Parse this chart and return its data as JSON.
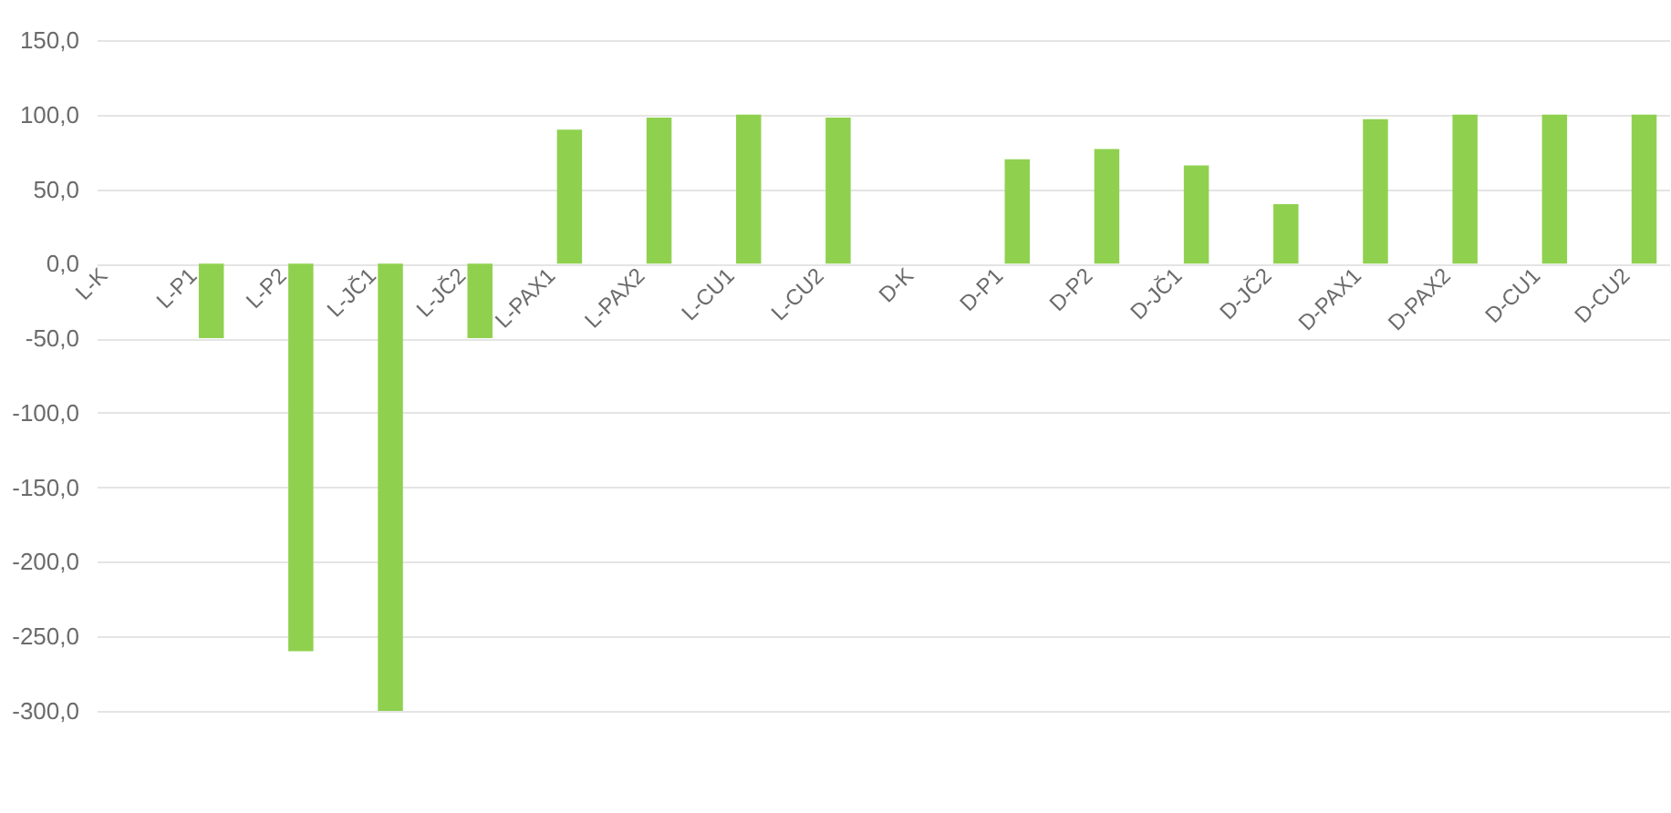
{
  "chart_data": {
    "type": "bar",
    "categories": [
      "L-K",
      "L-P1",
      "L-P2",
      "L-JČ1",
      "L-JČ2",
      "L-PAX1",
      "L-PAX2",
      "L-CU1",
      "L-CU2",
      "D-K",
      "D-P1",
      "D-P2",
      "D-JČ1",
      "D-JČ2",
      "D-PAX1",
      "D-PAX2",
      "D-CU1",
      "D-CU2"
    ],
    "values": [
      0,
      -50,
      -260,
      -300,
      -50,
      90,
      98,
      100,
      98,
      0,
      70,
      77,
      66,
      40,
      97,
      100,
      100,
      100
    ],
    "color": "#8fd14f",
    "ylim": [
      -300,
      150
    ],
    "yticks": [
      {
        "value": -300,
        "label": "-300,0"
      },
      {
        "value": -250,
        "label": "-250,0"
      },
      {
        "value": -200,
        "label": "-200,0"
      },
      {
        "value": -150,
        "label": "-150,0"
      },
      {
        "value": -100,
        "label": "-100,0"
      },
      {
        "value": -50,
        "label": "-50,0"
      },
      {
        "value": 0,
        "label": "0,0"
      },
      {
        "value": 50,
        "label": "50,0"
      },
      {
        "value": 100,
        "label": "100,0"
      },
      {
        "value": 150,
        "label": "150,0"
      }
    ],
    "grid": "y"
  }
}
